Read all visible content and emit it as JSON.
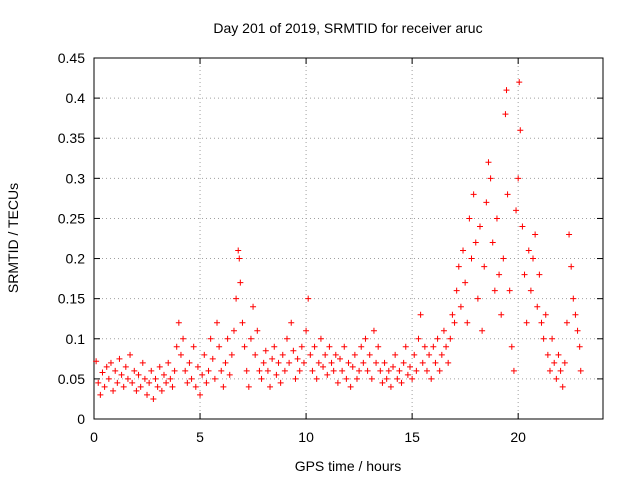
{
  "chart_data": {
    "type": "scatter",
    "title": "Day 201 of 2019, SRMTID for receiver aruc",
    "xlabel": "GPS time / hours",
    "ylabel": "SRMTID / TECUs",
    "xlim": [
      0,
      24
    ],
    "ylim": [
      0,
      0.45
    ],
    "xticks": [
      0,
      5,
      10,
      15,
      20
    ],
    "xtick_labels": [
      "0",
      "5",
      "10",
      "15",
      "20"
    ],
    "yticks": [
      0,
      0.05,
      0.1,
      0.15,
      0.2,
      0.25,
      0.3,
      0.35,
      0.4,
      0.45
    ],
    "ytick_labels": [
      "0",
      "0.05",
      "0.1",
      "0.15",
      "0.2",
      "0.25",
      "0.3",
      "0.35",
      "0.4",
      "0.45"
    ],
    "grid": true,
    "marker": "+",
    "color": "#ff0000",
    "series": [
      {
        "name": "SRMTID",
        "points": [
          [
            0.1,
            0.072
          ],
          [
            0.2,
            0.045
          ],
          [
            0.3,
            0.03
          ],
          [
            0.4,
            0.058
          ],
          [
            0.5,
            0.04
          ],
          [
            0.6,
            0.065
          ],
          [
            0.7,
            0.05
          ],
          [
            0.8,
            0.07
          ],
          [
            0.9,
            0.035
          ],
          [
            1.0,
            0.06
          ],
          [
            1.1,
            0.045
          ],
          [
            1.2,
            0.075
          ],
          [
            1.3,
            0.055
          ],
          [
            1.4,
            0.04
          ],
          [
            1.5,
            0.065
          ],
          [
            1.6,
            0.05
          ],
          [
            1.7,
            0.08
          ],
          [
            1.8,
            0.045
          ],
          [
            1.9,
            0.06
          ],
          [
            2.0,
            0.035
          ],
          [
            2.1,
            0.055
          ],
          [
            2.2,
            0.04
          ],
          [
            2.3,
            0.07
          ],
          [
            2.4,
            0.05
          ],
          [
            2.5,
            0.03
          ],
          [
            2.6,
            0.045
          ],
          [
            2.7,
            0.06
          ],
          [
            2.8,
            0.025
          ],
          [
            2.9,
            0.05
          ],
          [
            3.0,
            0.04
          ],
          [
            3.1,
            0.065
          ],
          [
            3.2,
            0.035
          ],
          [
            3.3,
            0.055
          ],
          [
            3.4,
            0.045
          ],
          [
            3.5,
            0.07
          ],
          [
            3.6,
            0.05
          ],
          [
            3.7,
            0.04
          ],
          [
            3.8,
            0.06
          ],
          [
            3.9,
            0.09
          ],
          [
            4.0,
            0.12
          ],
          [
            4.1,
            0.08
          ],
          [
            4.2,
            0.1
          ],
          [
            4.3,
            0.06
          ],
          [
            4.4,
            0.045
          ],
          [
            4.5,
            0.07
          ],
          [
            4.6,
            0.05
          ],
          [
            4.7,
            0.09
          ],
          [
            4.8,
            0.04
          ],
          [
            4.9,
            0.065
          ],
          [
            5.0,
            0.03
          ],
          [
            5.1,
            0.055
          ],
          [
            5.2,
            0.08
          ],
          [
            5.3,
            0.045
          ],
          [
            5.4,
            0.06
          ],
          [
            5.5,
            0.1
          ],
          [
            5.6,
            0.075
          ],
          [
            5.7,
            0.05
          ],
          [
            5.8,
            0.12
          ],
          [
            5.9,
            0.09
          ],
          [
            6.0,
            0.06
          ],
          [
            6.1,
            0.04
          ],
          [
            6.2,
            0.07
          ],
          [
            6.3,
            0.1
          ],
          [
            6.4,
            0.055
          ],
          [
            6.5,
            0.08
          ],
          [
            6.6,
            0.11
          ],
          [
            6.7,
            0.15
          ],
          [
            6.8,
            0.21
          ],
          [
            6.85,
            0.2
          ],
          [
            6.9,
            0.17
          ],
          [
            7.0,
            0.12
          ],
          [
            7.1,
            0.09
          ],
          [
            7.2,
            0.06
          ],
          [
            7.3,
            0.04
          ],
          [
            7.4,
            0.1
          ],
          [
            7.5,
            0.14
          ],
          [
            7.6,
            0.08
          ],
          [
            7.7,
            0.11
          ],
          [
            7.8,
            0.06
          ],
          [
            7.9,
            0.05
          ],
          [
            8.0,
            0.07
          ],
          [
            8.1,
            0.085
          ],
          [
            8.2,
            0.06
          ],
          [
            8.3,
            0.04
          ],
          [
            8.4,
            0.075
          ],
          [
            8.5,
            0.09
          ],
          [
            8.6,
            0.055
          ],
          [
            8.7,
            0.07
          ],
          [
            8.8,
            0.045
          ],
          [
            8.9,
            0.08
          ],
          [
            9.0,
            0.06
          ],
          [
            9.1,
            0.1
          ],
          [
            9.2,
            0.07
          ],
          [
            9.3,
            0.12
          ],
          [
            9.4,
            0.085
          ],
          [
            9.5,
            0.05
          ],
          [
            9.6,
            0.075
          ],
          [
            9.7,
            0.06
          ],
          [
            9.8,
            0.09
          ],
          [
            9.9,
            0.07
          ],
          [
            10.0,
            0.11
          ],
          [
            10.1,
            0.15
          ],
          [
            10.2,
            0.08
          ],
          [
            10.3,
            0.06
          ],
          [
            10.4,
            0.09
          ],
          [
            10.5,
            0.05
          ],
          [
            10.6,
            0.07
          ],
          [
            10.7,
            0.1
          ],
          [
            10.8,
            0.065
          ],
          [
            10.9,
            0.08
          ],
          [
            11.0,
            0.055
          ],
          [
            11.1,
            0.09
          ],
          [
            11.2,
            0.07
          ],
          [
            11.3,
            0.06
          ],
          [
            11.4,
            0.08
          ],
          [
            11.5,
            0.045
          ],
          [
            11.6,
            0.075
          ],
          [
            11.7,
            0.06
          ],
          [
            11.8,
            0.09
          ],
          [
            11.9,
            0.05
          ],
          [
            12.0,
            0.07
          ],
          [
            12.1,
            0.04
          ],
          [
            12.2,
            0.065
          ],
          [
            12.3,
            0.08
          ],
          [
            12.4,
            0.05
          ],
          [
            12.5,
            0.06
          ],
          [
            12.6,
            0.09
          ],
          [
            12.7,
            0.07
          ],
          [
            12.8,
            0.1
          ],
          [
            12.9,
            0.06
          ],
          [
            13.0,
            0.08
          ],
          [
            13.1,
            0.05
          ],
          [
            13.2,
            0.11
          ],
          [
            13.3,
            0.07
          ],
          [
            13.4,
            0.09
          ],
          [
            13.5,
            0.06
          ],
          [
            13.6,
            0.045
          ],
          [
            13.7,
            0.07
          ],
          [
            13.8,
            0.05
          ],
          [
            13.9,
            0.06
          ],
          [
            14.0,
            0.04
          ],
          [
            14.1,
            0.065
          ],
          [
            14.2,
            0.08
          ],
          [
            14.3,
            0.05
          ],
          [
            14.4,
            0.06
          ],
          [
            14.5,
            0.045
          ],
          [
            14.6,
            0.07
          ],
          [
            14.7,
            0.09
          ],
          [
            14.8,
            0.055
          ],
          [
            14.9,
            0.065
          ],
          [
            15.0,
            0.05
          ],
          [
            15.1,
            0.08
          ],
          [
            15.2,
            0.06
          ],
          [
            15.3,
            0.1
          ],
          [
            15.4,
            0.13
          ],
          [
            15.5,
            0.07
          ],
          [
            15.6,
            0.09
          ],
          [
            15.7,
            0.06
          ],
          [
            15.8,
            0.08
          ],
          [
            15.9,
            0.05
          ],
          [
            16.0,
            0.09
          ],
          [
            16.1,
            0.07
          ],
          [
            16.2,
            0.1
          ],
          [
            16.3,
            0.06
          ],
          [
            16.4,
            0.08
          ],
          [
            16.5,
            0.11
          ],
          [
            16.6,
            0.09
          ],
          [
            16.7,
            0.07
          ],
          [
            16.8,
            0.1
          ],
          [
            16.9,
            0.13
          ],
          [
            17.0,
            0.12
          ],
          [
            17.1,
            0.16
          ],
          [
            17.2,
            0.19
          ],
          [
            17.3,
            0.14
          ],
          [
            17.4,
            0.21
          ],
          [
            17.5,
            0.17
          ],
          [
            17.6,
            0.12
          ],
          [
            17.7,
            0.25
          ],
          [
            17.8,
            0.2
          ],
          [
            17.9,
            0.28
          ],
          [
            18.0,
            0.22
          ],
          [
            18.1,
            0.15
          ],
          [
            18.2,
            0.24
          ],
          [
            18.3,
            0.11
          ],
          [
            18.4,
            0.19
          ],
          [
            18.5,
            0.27
          ],
          [
            18.6,
            0.32
          ],
          [
            18.7,
            0.3
          ],
          [
            18.8,
            0.22
          ],
          [
            18.9,
            0.16
          ],
          [
            19.0,
            0.25
          ],
          [
            19.1,
            0.18
          ],
          [
            19.2,
            0.13
          ],
          [
            19.3,
            0.2
          ],
          [
            19.4,
            0.38
          ],
          [
            19.45,
            0.41
          ],
          [
            19.5,
            0.28
          ],
          [
            19.6,
            0.16
          ],
          [
            19.7,
            0.09
          ],
          [
            19.8,
            0.06
          ],
          [
            19.9,
            0.26
          ],
          [
            20.0,
            0.3
          ],
          [
            20.05,
            0.42
          ],
          [
            20.1,
            0.36
          ],
          [
            20.2,
            0.24
          ],
          [
            20.3,
            0.18
          ],
          [
            20.4,
            0.12
          ],
          [
            20.5,
            0.21
          ],
          [
            20.6,
            0.16
          ],
          [
            20.7,
            0.2
          ],
          [
            20.8,
            0.23
          ],
          [
            20.9,
            0.14
          ],
          [
            21.0,
            0.18
          ],
          [
            21.1,
            0.12
          ],
          [
            21.2,
            0.1
          ],
          [
            21.3,
            0.13
          ],
          [
            21.4,
            0.08
          ],
          [
            21.5,
            0.06
          ],
          [
            21.6,
            0.1
          ],
          [
            21.7,
            0.07
          ],
          [
            21.8,
            0.05
          ],
          [
            21.9,
            0.08
          ],
          [
            22.0,
            0.06
          ],
          [
            22.1,
            0.04
          ],
          [
            22.2,
            0.07
          ],
          [
            22.3,
            0.12
          ],
          [
            22.4,
            0.23
          ],
          [
            22.5,
            0.19
          ],
          [
            22.6,
            0.15
          ],
          [
            22.7,
            0.13
          ],
          [
            22.8,
            0.11
          ],
          [
            22.9,
            0.09
          ],
          [
            22.95,
            0.06
          ]
        ]
      }
    ]
  }
}
